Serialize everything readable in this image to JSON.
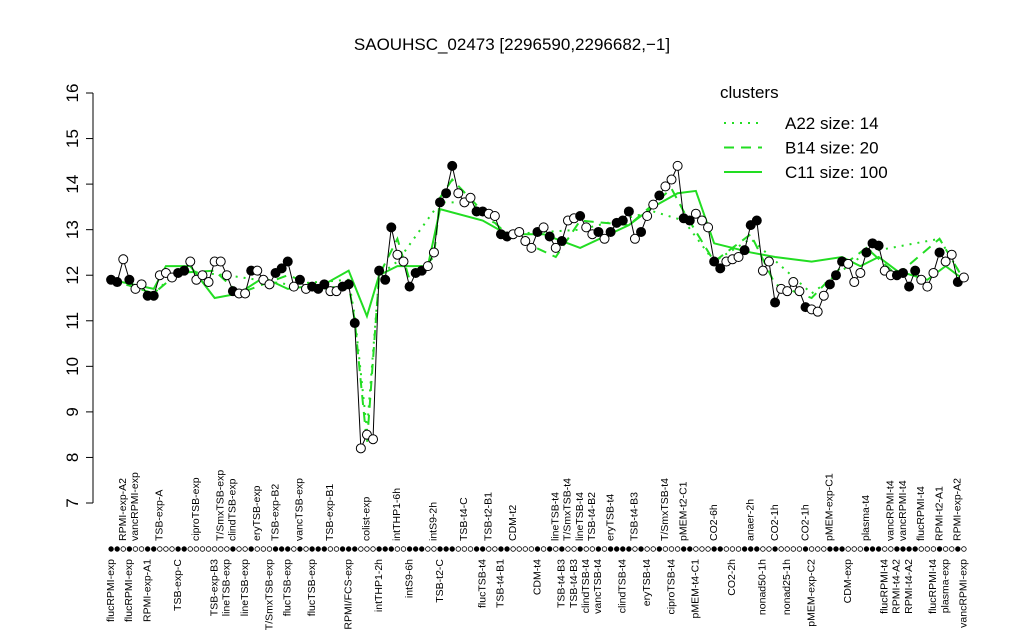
{
  "chart_data": {
    "type": "line",
    "title": "SAOUHSC_02473 [2296590,2296682,−1]",
    "ylim": [
      7,
      16
    ],
    "yticks": [
      7,
      8,
      9,
      10,
      11,
      12,
      13,
      14,
      15,
      16
    ],
    "xlim": [
      0,
      142
    ],
    "legend": {
      "title": "clusters",
      "corner": "top-right"
    },
    "xticks": [
      {
        "value": 1,
        "label": "flucRPMI-exp"
      },
      {
        "value": 3,
        "label": "RPMI-exp-A2"
      },
      {
        "value": 4,
        "label": "flucRPMI-exp"
      },
      {
        "value": 5,
        "label": "vancRPMI-exp"
      },
      {
        "value": 7,
        "label": "RPMI-exp-A1"
      },
      {
        "value": 9,
        "label": "TSB-exp-A"
      },
      {
        "value": 12,
        "label": "TSB-exp-C"
      },
      {
        "value": 15,
        "label": "ciproTSB-exp"
      },
      {
        "value": 18,
        "label": "TSB-exp-B3"
      },
      {
        "value": 19,
        "label": "T/SmxTSB-exp"
      },
      {
        "value": 20,
        "label": "lineTSB-exp"
      },
      {
        "value": 21,
        "label": "clindTSB-exp"
      },
      {
        "value": 23,
        "label": "lineTSB-exp"
      },
      {
        "value": 25,
        "label": "eryTSB-exp"
      },
      {
        "value": 27,
        "label": "T/SmxTSB-exp"
      },
      {
        "value": 28,
        "label": "TSB-exp-B2"
      },
      {
        "value": 30,
        "label": "flucTSB-exp"
      },
      {
        "value": 32,
        "label": "vancTSB-exp"
      },
      {
        "value": 34,
        "label": "flucTSB-exp"
      },
      {
        "value": 37,
        "label": "TSB-exp-B1"
      },
      {
        "value": 40,
        "label": "RPMI/FCS-exp"
      },
      {
        "value": 43,
        "label": "colist-exp"
      },
      {
        "value": 45,
        "label": "intTHP1-2h"
      },
      {
        "value": 48,
        "label": "intTHP1-6h"
      },
      {
        "value": 50,
        "label": "intS9-6h"
      },
      {
        "value": 54,
        "label": "intS9-2h"
      },
      {
        "value": 55,
        "label": "TSB-t2-C"
      },
      {
        "value": 59,
        "label": "TSB-t4-C"
      },
      {
        "value": 62,
        "label": "flucTSB-t4"
      },
      {
        "value": 63,
        "label": "TSB-t2-B1"
      },
      {
        "value": 65,
        "label": "TSB-t4-B1"
      },
      {
        "value": 67,
        "label": "CDM-t2"
      },
      {
        "value": 71,
        "label": "CDM-t4"
      },
      {
        "value": 74,
        "label": "lineTSB-t4"
      },
      {
        "value": 75,
        "label": "TSB-t4-B3"
      },
      {
        "value": 76,
        "label": "T/SmxTSB-t4"
      },
      {
        "value": 77,
        "label": "TSB-t4-B3"
      },
      {
        "value": 78,
        "label": "lineTSB-t4"
      },
      {
        "value": 79,
        "label": "clindTSB-t4"
      },
      {
        "value": 80,
        "label": "TSB-t4-B2"
      },
      {
        "value": 81,
        "label": "vancTSB-t4"
      },
      {
        "value": 83,
        "label": "eryTSB-t4"
      },
      {
        "value": 85,
        "label": "clindTSB-t4"
      },
      {
        "value": 87,
        "label": "TSB-t4-B3"
      },
      {
        "value": 89,
        "label": "eryTSB-t4"
      },
      {
        "value": 92,
        "label": "T/SmxTSB-t4"
      },
      {
        "value": 93,
        "label": "ciproTSB-t4"
      },
      {
        "value": 95,
        "label": "pMEM-t2-C1"
      },
      {
        "value": 97,
        "label": "pMEM-t4-C1"
      },
      {
        "value": 100,
        "label": "CO2-6h"
      },
      {
        "value": 103,
        "label": "CO2-2h"
      },
      {
        "value": 106,
        "label": "anaer-2h"
      },
      {
        "value": 108,
        "label": "nonad50-1h"
      },
      {
        "value": 110,
        "label": "CO2-1h"
      },
      {
        "value": 112,
        "label": "nonad25-1h"
      },
      {
        "value": 115,
        "label": "CO2-1h"
      },
      {
        "value": 116,
        "label": "pMEM-exp-C2"
      },
      {
        "value": 119,
        "label": "pMEM-exp-C1"
      },
      {
        "value": 122,
        "label": "CDM-exp"
      },
      {
        "value": 125,
        "label": "plasma-t4"
      },
      {
        "value": 128,
        "label": "flucRPMI-t4"
      },
      {
        "value": 129,
        "label": "vancRPMI-t4"
      },
      {
        "value": 130,
        "label": "RPMI-t4-A2"
      },
      {
        "value": 131,
        "label": "vancRPMI-t4"
      },
      {
        "value": 132,
        "label": "RPMI-t4-A2"
      },
      {
        "value": 134,
        "label": "flucRPMI-t4"
      },
      {
        "value": 136,
        "label": "flucRPMI-t4"
      },
      {
        "value": 137,
        "label": "RPMI-t2-A1"
      },
      {
        "value": 138,
        "label": "plasma-exp"
      },
      {
        "value": 140,
        "label": "RPMI-exp-A2"
      },
      {
        "value": 141,
        "label": "vancRPMI-exp"
      }
    ],
    "points": {
      "color": "#000000",
      "x": [
        1,
        2,
        3,
        4,
        5,
        6,
        7,
        8,
        9,
        10,
        11,
        12,
        13,
        14,
        15,
        16,
        17,
        18,
        19,
        20,
        21,
        22,
        23,
        24,
        25,
        26,
        27,
        28,
        29,
        30,
        31,
        32,
        33,
        34,
        35,
        36,
        37,
        38,
        39,
        40,
        41,
        42,
        43,
        44,
        45,
        46,
        47,
        48,
        49,
        50,
        51,
        52,
        53,
        54,
        55,
        56,
        57,
        58,
        59,
        60,
        61,
        62,
        63,
        64,
        65,
        66,
        67,
        68,
        69,
        70,
        71,
        72,
        73,
        74,
        75,
        76,
        77,
        78,
        79,
        80,
        81,
        82,
        83,
        84,
        85,
        86,
        87,
        88,
        89,
        90,
        91,
        92,
        93,
        94,
        95,
        96,
        97,
        98,
        99,
        100,
        101,
        102,
        103,
        104,
        105,
        106,
        107,
        108,
        109,
        110,
        111,
        112,
        113,
        114,
        115,
        116,
        117,
        118,
        119,
        120,
        121,
        122,
        123,
        124,
        125,
        126,
        127,
        128,
        129,
        130,
        131,
        132,
        133,
        134,
        135,
        136,
        137,
        138,
        139,
        140,
        141
      ],
      "values": [
        11.9,
        11.85,
        12.35,
        11.9,
        11.7,
        11.8,
        11.55,
        11.55,
        12.0,
        12.05,
        11.95,
        12.05,
        12.1,
        12.3,
        11.9,
        12.0,
        11.85,
        12.3,
        12.3,
        12.0,
        11.65,
        11.6,
        11.6,
        12.1,
        12.1,
        11.9,
        11.8,
        12.05,
        12.15,
        12.3,
        11.75,
        11.9,
        11.7,
        11.75,
        11.7,
        11.8,
        11.65,
        11.65,
        11.75,
        11.8,
        10.95,
        8.2,
        8.5,
        8.4,
        12.1,
        11.9,
        13.05,
        12.45,
        12.3,
        11.75,
        12.05,
        12.1,
        12.2,
        12.5,
        13.6,
        13.8,
        14.4,
        13.8,
        13.6,
        13.7,
        13.4,
        13.4,
        13.35,
        13.3,
        12.9,
        12.85,
        12.9,
        12.95,
        12.75,
        12.6,
        12.95,
        13.05,
        12.85,
        12.6,
        12.75,
        13.2,
        13.25,
        13.3,
        13.05,
        12.9,
        12.95,
        12.8,
        12.95,
        13.15,
        13.2,
        13.4,
        12.8,
        12.95,
        13.3,
        13.55,
        13.75,
        13.95,
        14.1,
        14.4,
        13.25,
        13.2,
        13.35,
        13.2,
        13.05,
        12.3,
        12.15,
        12.3,
        12.35,
        12.4,
        12.55,
        13.1,
        13.2,
        12.1,
        12.3,
        11.4,
        11.7,
        11.65,
        11.85,
        11.65,
        11.3,
        11.25,
        11.2,
        11.55,
        11.8,
        12.0,
        12.3,
        12.25,
        11.85,
        12.05,
        12.5,
        12.7,
        12.65,
        12.1,
        12.0,
        12.0,
        12.05,
        11.75,
        12.1,
        11.9,
        11.75,
        12.05,
        12.5,
        12.3,
        12.45,
        11.85,
        11.95
      ],
      "filled": [
        true,
        true,
        false,
        true,
        false,
        false,
        true,
        true,
        false,
        false,
        false,
        true,
        true,
        false,
        false,
        false,
        false,
        false,
        false,
        false,
        true,
        false,
        false,
        true,
        false,
        false,
        false,
        true,
        true,
        true,
        false,
        true,
        false,
        true,
        true,
        true,
        false,
        false,
        true,
        true,
        true,
        false,
        false,
        false,
        true,
        true,
        true,
        false,
        false,
        true,
        true,
        true,
        false,
        false,
        true,
        true,
        true,
        false,
        false,
        false,
        true,
        true,
        false,
        false,
        true,
        true,
        false,
        false,
        false,
        false,
        true,
        false,
        true,
        false,
        true,
        false,
        false,
        true,
        false,
        false,
        true,
        false,
        true,
        true,
        true,
        true,
        false,
        true,
        false,
        false,
        true,
        false,
        false,
        false,
        true,
        true,
        false,
        false,
        false,
        true,
        true,
        false,
        false,
        false,
        true,
        true,
        true,
        false,
        false,
        true,
        false,
        false,
        false,
        false,
        true,
        false,
        false,
        false,
        true,
        true,
        true,
        false,
        false,
        false,
        true,
        true,
        true,
        false,
        false,
        true,
        true,
        true,
        true,
        false,
        false,
        false,
        true,
        false,
        false,
        true,
        false
      ]
    },
    "series": [
      {
        "name": "A22 size: 14",
        "color": "#22dd22",
        "dash": "dotted",
        "x": [
          1,
          8,
          12,
          20,
          30,
          40,
          41,
          43,
          45,
          48,
          55,
          60,
          66,
          78,
          90,
          95,
          100,
          106,
          116,
          125,
          137,
          141
        ],
        "values": [
          11.9,
          11.6,
          12.1,
          12.0,
          11.8,
          11.9,
          11.1,
          8.6,
          12.0,
          12.3,
          13.6,
          13.6,
          12.9,
          13.0,
          13.4,
          13.2,
          12.3,
          12.8,
          11.6,
          12.5,
          12.8,
          11.9
        ]
      },
      {
        "name": "B14 size: 20",
        "color": "#22dd22",
        "dash": "dashed",
        "x": [
          1,
          8,
          12,
          18,
          22,
          30,
          36,
          40,
          41,
          43,
          45,
          48,
          50,
          54,
          55,
          57,
          62,
          66,
          74,
          78,
          86,
          93,
          95,
          100,
          106,
          110,
          116,
          121,
          125,
          130,
          137,
          141
        ],
        "values": [
          11.9,
          11.6,
          12.05,
          12.1,
          11.6,
          12.0,
          11.7,
          11.8,
          11.0,
          8.3,
          12.0,
          12.8,
          11.9,
          12.4,
          13.7,
          14.1,
          13.4,
          12.9,
          12.4,
          13.2,
          13.1,
          13.9,
          13.4,
          12.3,
          12.9,
          11.8,
          11.5,
          12.2,
          12.6,
          12.0,
          12.8,
          11.9
        ]
      },
      {
        "name": "C11 size: 100",
        "color": "#22dd22",
        "dash": "solid",
        "x": [
          1,
          8,
          10,
          14,
          18,
          22,
          26,
          30,
          36,
          40,
          43,
          45,
          48,
          53,
          55,
          62,
          66,
          72,
          78,
          86,
          90,
          94,
          97,
          100,
          106,
          110,
          116,
          121,
          124,
          127,
          130,
          135,
          138,
          141
        ],
        "values": [
          11.9,
          11.7,
          12.2,
          12.2,
          11.5,
          11.6,
          11.95,
          11.7,
          11.8,
          12.1,
          11.1,
          12.0,
          12.2,
          12.2,
          13.45,
          13.2,
          12.9,
          12.9,
          12.6,
          13.1,
          13.5,
          13.8,
          13.85,
          12.7,
          12.5,
          12.4,
          12.3,
          12.4,
          12.2,
          12.4,
          12.1,
          11.9,
          12.2,
          11.9
        ]
      }
    ]
  }
}
